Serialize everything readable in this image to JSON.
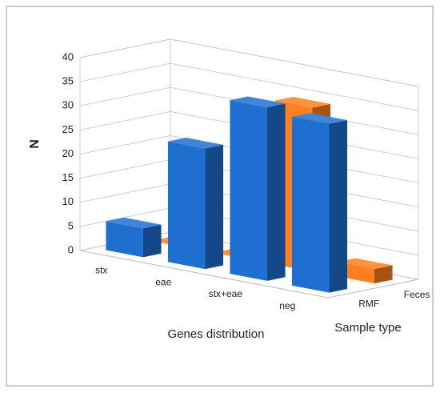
{
  "chart_data": {
    "type": "bar3d",
    "x_label": "Genes distribution",
    "y_label": "N",
    "z_label": "Sample type",
    "categories": [
      "stx",
      "eae",
      "stx+eae",
      "neg"
    ],
    "series": [
      {
        "name": "RMF",
        "color": "#1f6fd1",
        "values": [
          6,
          25,
          36,
          35
        ]
      },
      {
        "name": "Feces",
        "color": "#ff8020",
        "values": [
          0,
          0,
          34,
          3
        ]
      }
    ],
    "ylim": [
      0,
      40
    ],
    "yticks": [
      0,
      5,
      10,
      15,
      20,
      25,
      30,
      35,
      40
    ],
    "grid": true
  }
}
